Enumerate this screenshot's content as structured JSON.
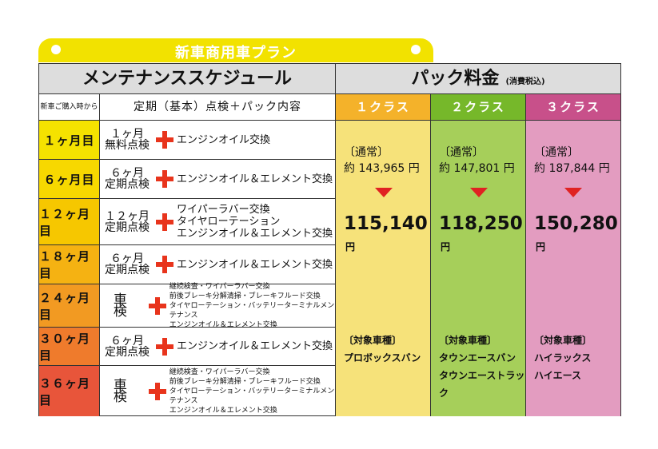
{
  "plan_title": "新車商用車プラン",
  "header": {
    "schedule": "メンテナンススケジュール",
    "pack": "パック料金",
    "pack_note": "(消費税込)",
    "since_purchase": "新車ご購入時から",
    "content_header": "定期（基本）点検＋パック内容"
  },
  "classes": [
    {
      "label": "１クラス",
      "color": "#f4b22a",
      "body_color": "#f6e27a",
      "regular_label": "〔通常〕",
      "regular_price": "約 143,965 円",
      "price": "115,140",
      "yen": "円",
      "target_label": "〔対象車種〕",
      "targets": [
        "プロボックスバン"
      ]
    },
    {
      "label": "２クラス",
      "color": "#76b82a",
      "body_color": "#a6cf5a",
      "regular_label": "〔通常〕",
      "regular_price": "約 147,801 円",
      "price": "118,250",
      "yen": "円",
      "target_label": "〔対象車種〕",
      "targets": [
        "タウンエースバン",
        "タウンエーストラック"
      ]
    },
    {
      "label": "３クラス",
      "color": "#c8508a",
      "body_color": "#e39cc0",
      "regular_label": "〔通常〕",
      "regular_price": "約 187,844 円",
      "price": "150,280",
      "yen": "円",
      "target_label": "〔対象車種〕",
      "targets": [
        "ハイラックス",
        "ハイエース"
      ]
    }
  ],
  "rows": [
    {
      "month": "１ヶ月目",
      "kind_lines": [
        "１ヶ月",
        "無料点検"
      ],
      "items": [
        "エンジンオイル交換"
      ],
      "small": false,
      "bg": "#f5e200"
    },
    {
      "month": "６ヶ月目",
      "kind_lines": [
        "６ヶ月",
        "定期点検"
      ],
      "items": [
        "エンジンオイル＆エレメント交換"
      ],
      "small": false,
      "bg": "#f7d800"
    },
    {
      "month": "１２ヶ月目",
      "kind_lines": [
        "１２ヶ月",
        "定期点検"
      ],
      "items": [
        "ワイパーラバー交換",
        "タイヤローテーション",
        "エンジンオイル＆エレメント交換"
      ],
      "small": false,
      "bg": "#f6c700"
    },
    {
      "month": "１８ヶ月目",
      "kind_lines": [
        "６ヶ月",
        "定期点検"
      ],
      "items": [
        "エンジンオイル＆エレメント交換"
      ],
      "small": false,
      "bg": "#f5b212"
    },
    {
      "month": "２４ヶ月目",
      "kind_lines": [
        "車 検"
      ],
      "items": [
        "継続検査・ワイパーラバー交換",
        "前後ブレーキ分解清掃・ブレーキフルード交換",
        "タイヤローテーション・バッテリーターミナルメンテナンス",
        "エンジンオイル＆エレメント交換"
      ],
      "small": true,
      "bg": "#f29a22"
    },
    {
      "month": "３０ヶ月目",
      "kind_lines": [
        "６ヶ月",
        "定期点検"
      ],
      "items": [
        "エンジンオイル＆エレメント交換"
      ],
      "small": false,
      "bg": "#ef7b2c"
    },
    {
      "month": "３６ヶ月目",
      "kind_lines": [
        "車 検"
      ],
      "items": [
        "継続検査・ワイパーラバー交換",
        "前後ブレーキ分解清掃・ブレーキフルード交換",
        "タイヤローテーション・バッテリーターミナルメンテナンス",
        "エンジンオイル＆エレメント交換"
      ],
      "small": true,
      "bg": "#e8553a"
    }
  ]
}
